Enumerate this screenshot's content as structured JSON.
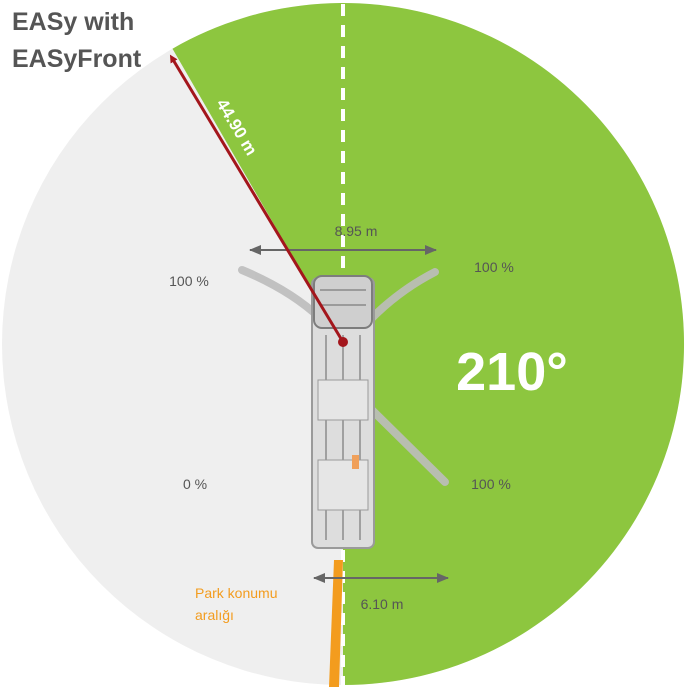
{
  "title": {
    "line1": "EASy with",
    "line2": "EASyFront"
  },
  "slewing_angle": "210°",
  "radius_label": "44.90 m",
  "outrigger_width_label": "8.95 m",
  "rear_width_label": "6.10 m",
  "support_labels": {
    "front_left": "100 %",
    "front_right": "100 %",
    "rear_left": "0 %",
    "rear_right": "100 %"
  },
  "park_label": {
    "line1": "Park konumu",
    "line2": "aralığı"
  },
  "colors": {
    "working_area": "#8dc63f",
    "restricted_area": "#efefef",
    "radius_arrow": "#a3161c",
    "park_range": "#f39c1e",
    "dimension_arrow": "#666666",
    "label_text": "#555555"
  }
}
